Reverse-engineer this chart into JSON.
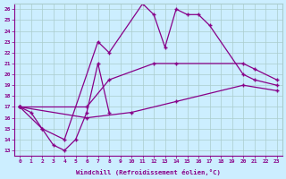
{
  "xlabel": "Windchill (Refroidissement éolien,°C)",
  "bg_color": "#cceeff",
  "line_color": "#880088",
  "grid_color": "#aacccc",
  "xlim": [
    -0.5,
    23.5
  ],
  "ylim": [
    12.5,
    26.5
  ],
  "xticks": [
    0,
    1,
    2,
    3,
    4,
    5,
    6,
    7,
    8,
    9,
    10,
    11,
    12,
    13,
    14,
    15,
    16,
    17,
    18,
    19,
    20,
    21,
    22,
    23
  ],
  "yticks": [
    13,
    14,
    15,
    16,
    17,
    18,
    19,
    20,
    21,
    22,
    23,
    24,
    25,
    26
  ],
  "line1_x": [
    0,
    1,
    2,
    3,
    4,
    5,
    6,
    7,
    8
  ],
  "line1_y": [
    17,
    16.5,
    15,
    13.5,
    13,
    14,
    16.5,
    21,
    16.5
  ],
  "line2_x": [
    0,
    2,
    4,
    7,
    8,
    11,
    12,
    13,
    14,
    15,
    16,
    17,
    20,
    21,
    23
  ],
  "line2_y": [
    17,
    15,
    14,
    23,
    22,
    26.5,
    25.5,
    22.5,
    26,
    25.5,
    25.5,
    24.5,
    20,
    19.5,
    19
  ],
  "line3_x": [
    0,
    6,
    8,
    12,
    14,
    20,
    21,
    23
  ],
  "line3_y": [
    17,
    17,
    19.5,
    21,
    21,
    21,
    20.5,
    19.5
  ],
  "line4_x": [
    0,
    6,
    10,
    14,
    20,
    23
  ],
  "line4_y": [
    17,
    16,
    16.5,
    17.5,
    19,
    18.5
  ]
}
